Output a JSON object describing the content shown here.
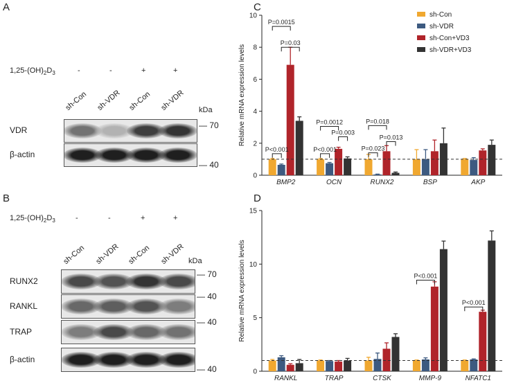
{
  "panelA": {
    "label": "A",
    "treatment_label": "1,25-(OH)",
    "treatment_sub1": "2",
    "treatment_mid": "D",
    "treatment_sub2": "3",
    "treatment_signs": [
      "-",
      "-",
      "+",
      "+"
    ],
    "lanes": [
      "sh-Con",
      "sh-VDR",
      "sh-Con",
      "sh-VDR"
    ],
    "kda": "kDa",
    "rows": [
      {
        "name": "VDR",
        "marker": "70",
        "intensity": [
          0.55,
          0.25,
          0.8,
          0.85
        ]
      },
      {
        "name": "β-actin",
        "marker": "40",
        "intensity": [
          0.95,
          0.95,
          0.95,
          0.95
        ]
      }
    ]
  },
  "panelB": {
    "label": "B",
    "treatment_label": "1,25-(OH)",
    "treatment_sub1": "2",
    "treatment_mid": "D",
    "treatment_sub2": "3",
    "treatment_signs": [
      "-",
      "-",
      "+",
      "+"
    ],
    "lanes": [
      "sh-Con",
      "sh-VDR",
      "sh-Con",
      "sh-VDR"
    ],
    "kda": "kDa",
    "rows": [
      {
        "name": "RUNX2",
        "marker": "70",
        "intensity": [
          0.75,
          0.7,
          0.85,
          0.75
        ]
      },
      {
        "name": "RANKL",
        "marker": "40",
        "intensity": [
          0.6,
          0.65,
          0.7,
          0.5
        ]
      },
      {
        "name": "TRAP",
        "marker": "40",
        "intensity": [
          0.5,
          0.75,
          0.6,
          0.55
        ]
      },
      {
        "name": "β-actin",
        "marker": "40",
        "intensity": [
          0.95,
          0.95,
          0.95,
          0.95
        ]
      }
    ]
  },
  "chart_data": [
    {
      "panel": "C",
      "type": "bar",
      "ylabel": "Relative mRNA expression levels",
      "ylim": [
        0,
        10
      ],
      "yticks": [
        0,
        2,
        4,
        6,
        8,
        10
      ],
      "categories": [
        "BMP2",
        "OCN",
        "RUNX2",
        "BSP",
        "AKP"
      ],
      "series": [
        {
          "name": "sh-Con",
          "color": "#f0a830",
          "values": [
            1.0,
            1.0,
            1.0,
            1.0,
            1.0
          ],
          "errors": [
            0.05,
            0.05,
            0.3,
            0.6,
            0.05
          ]
        },
        {
          "name": "sh-VDR",
          "color": "#3d5a80",
          "values": [
            0.65,
            0.75,
            0.05,
            1.0,
            0.95
          ],
          "errors": [
            0.05,
            0.05,
            0.02,
            0.6,
            0.15
          ]
        },
        {
          "name": "sh-Con+VD3",
          "color": "#b0242a",
          "values": [
            6.9,
            1.65,
            1.5,
            1.5,
            1.55
          ],
          "errors": [
            1.1,
            0.1,
            0.35,
            0.7,
            0.1
          ]
        },
        {
          "name": "sh-VDR+VD3",
          "color": "#333333",
          "values": [
            3.4,
            1.05,
            0.15,
            2.0,
            1.9
          ],
          "errors": [
            0.25,
            0.1,
            0.05,
            0.95,
            0.3
          ]
        }
      ],
      "annotations": [
        {
          "text": "P=0.0015",
          "category": 0,
          "from": 0,
          "to": 2,
          "y": 9.3
        },
        {
          "text": "P=0.03",
          "category": 0,
          "from": 1,
          "to": 3,
          "y": 8.0
        },
        {
          "text": "P<0.001",
          "category": 0,
          "from": 0,
          "to": 1,
          "y": 1.35
        },
        {
          "text": "P=0.0012",
          "category": 1,
          "from": 0,
          "to": 2,
          "y": 3.05
        },
        {
          "text": "P=0.003",
          "category": 1,
          "from": 2,
          "to": 3,
          "y": 2.4
        },
        {
          "text": "P<0.001",
          "category": 1,
          "from": 0,
          "to": 1,
          "y": 1.35
        },
        {
          "text": "P=0.018",
          "category": 2,
          "from": 0,
          "to": 2,
          "y": 3.1
        },
        {
          "text": "P=0.013",
          "category": 2,
          "from": 2,
          "to": 3,
          "y": 2.1
        },
        {
          "text": "P=0.023",
          "category": 2,
          "from": 0,
          "to": 1,
          "y": 1.4
        }
      ],
      "reference_line": 1.0
    },
    {
      "panel": "D",
      "type": "bar",
      "ylabel": "Relative mRNA expression levels",
      "ylim": [
        0,
        15
      ],
      "yticks": [
        0,
        5,
        10,
        15
      ],
      "categories": [
        "RANKL",
        "TRAP",
        "CTSK",
        "MMP-9",
        "NFATC1"
      ],
      "series": [
        {
          "name": "sh-Con",
          "color": "#f0a830",
          "values": [
            1.0,
            1.0,
            1.0,
            1.0,
            1.0
          ],
          "errors": [
            0.1,
            0.05,
            0.3,
            0.05,
            0.05
          ]
        },
        {
          "name": "sh-VDR",
          "color": "#3d5a80",
          "values": [
            1.3,
            0.95,
            1.15,
            1.1,
            1.1
          ],
          "errors": [
            0.15,
            0.05,
            0.55,
            0.15,
            0.05
          ]
        },
        {
          "name": "sh-Con+VD3",
          "color": "#b0242a",
          "values": [
            0.6,
            0.9,
            2.1,
            7.9,
            5.55
          ],
          "errors": [
            0.1,
            0.1,
            0.55,
            0.45,
            0.15
          ]
        },
        {
          "name": "sh-VDR+VD3",
          "color": "#333333",
          "values": [
            0.75,
            1.0,
            3.2,
            11.4,
            12.2
          ],
          "errors": [
            0.35,
            0.2,
            0.3,
            0.75,
            0.9
          ]
        }
      ],
      "annotations": [
        {
          "text": "P<0.001",
          "category": 3,
          "from": 0,
          "to": 2,
          "y": 8.5
        },
        {
          "text": "P<0.001",
          "category": 4,
          "from": 0,
          "to": 2,
          "y": 6.0
        }
      ],
      "reference_line": 1.0
    }
  ],
  "chartC_label": "C",
  "chartD_label": "D"
}
